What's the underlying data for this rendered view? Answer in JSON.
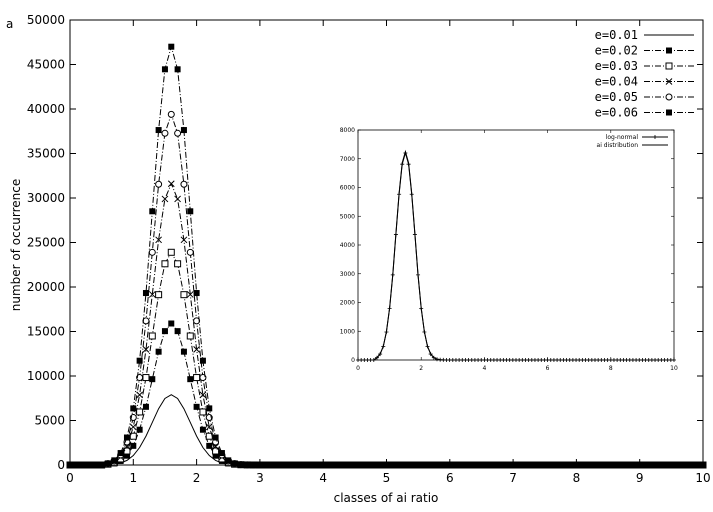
{
  "panel_label": "a",
  "chart_data": [
    {
      "type": "line",
      "xlabel": "classes of ai ratio",
      "ylabel": "number of occurrence",
      "xlim": [
        0,
        10
      ],
      "ylim": [
        0,
        50000
      ],
      "xticks": [
        "0",
        "1",
        "2",
        "3",
        "4",
        "5",
        "6",
        "7",
        "8",
        "9",
        "10"
      ],
      "yticks": [
        "0",
        "5000",
        "10000",
        "15000",
        "20000",
        "25000",
        "30000",
        "35000",
        "40000",
        "45000",
        "50000"
      ],
      "grid": false,
      "legend_position": "top-right",
      "marker_step": 0.1,
      "peak_x": 1.6,
      "series": [
        {
          "name": "e=0.01",
          "marker": "none",
          "dash": "solid",
          "peak": 7900
        },
        {
          "name": "e=0.02",
          "marker": "filled-square",
          "dash": "dash-dot",
          "peak": 15900
        },
        {
          "name": "e=0.03",
          "marker": "open-square",
          "dash": "dash-dot",
          "peak": 23900
        },
        {
          "name": "e=0.04",
          "marker": "cross",
          "dash": "dash-dot",
          "peak": 31600
        },
        {
          "name": "e=0.05",
          "marker": "open-circle",
          "dash": "dash-dot",
          "peak": 39400
        },
        {
          "name": "e=0.06",
          "marker": "filled-square",
          "dash": "dash-dot",
          "peak": 47000
        }
      ]
    },
    {
      "type": "line",
      "xlim": [
        0,
        10
      ],
      "ylim": [
        0,
        8000
      ],
      "xticks": [
        "0",
        "2",
        "4",
        "6",
        "8",
        "10"
      ],
      "yticks": [
        "0",
        "1000",
        "2000",
        "3000",
        "4000",
        "5000",
        "6000",
        "7000",
        "8000"
      ],
      "legend_position": "top-right",
      "peak_x": 1.5,
      "series": [
        {
          "name": "log-normal",
          "marker": "plus",
          "peak": 7200
        },
        {
          "name": "ai distribution",
          "marker": "none",
          "peak": 7250
        }
      ]
    }
  ]
}
